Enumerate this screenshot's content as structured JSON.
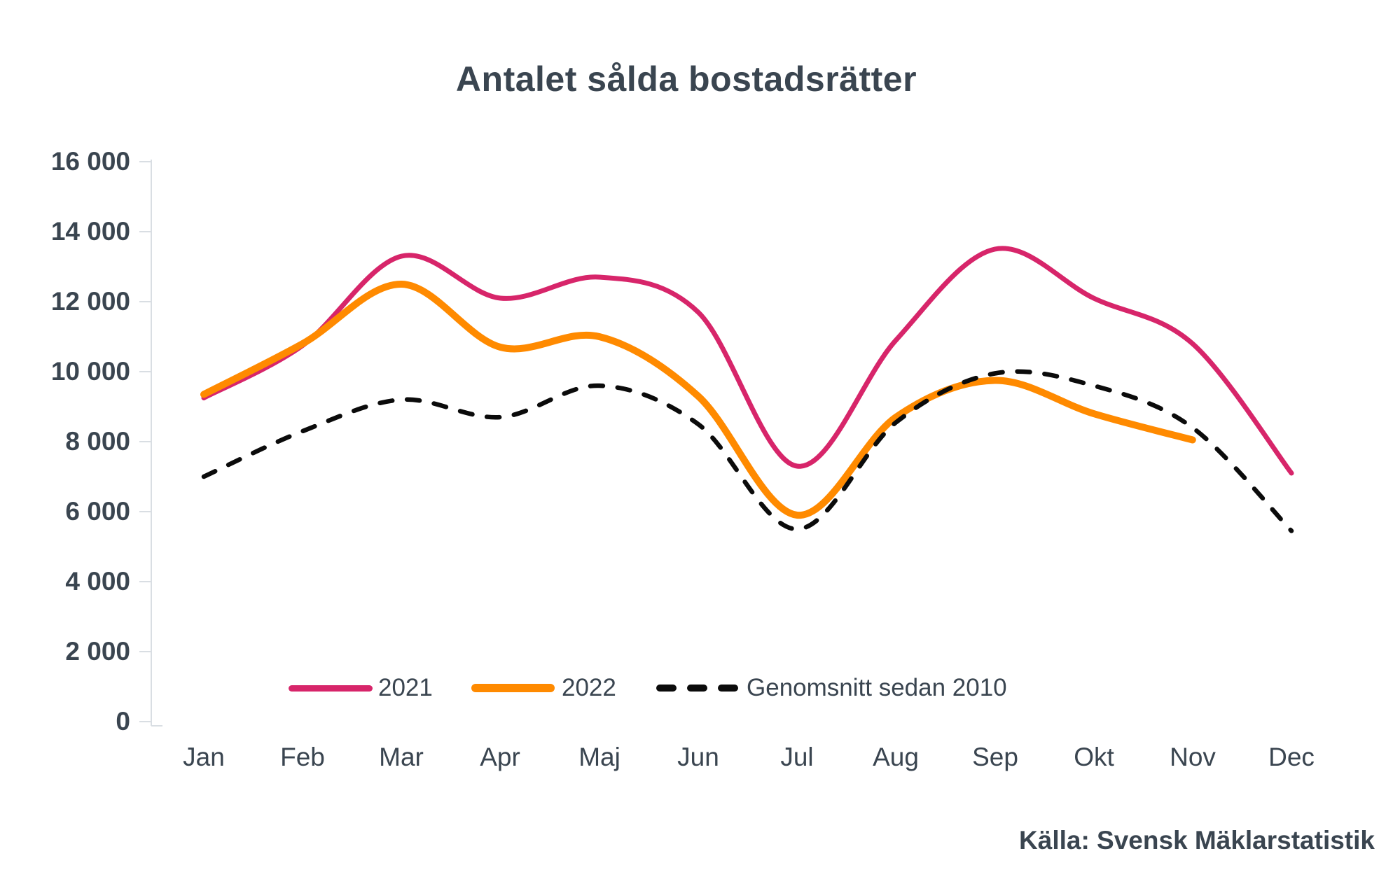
{
  "title": "Antalet sålda bostadsrätter",
  "source": "Källa: Svensk Mäklarstatistik",
  "colors": {
    "series_2021": "#D7256A",
    "series_2022": "#FF8A00",
    "average": "#0b0b0b",
    "text": "#3A4550",
    "axis": "#D9DEE3"
  },
  "yaxis": {
    "labels": [
      "16 000",
      "14 000",
      "12 000",
      "10 000",
      "8 000",
      "6 000",
      "4 000",
      "2 000",
      "0"
    ]
  },
  "xaxis": {
    "labels": [
      "Jan",
      "Feb",
      "Mar",
      "Apr",
      "Maj",
      "Jun",
      "Jul",
      "Aug",
      "Sep",
      "Okt",
      "Nov",
      "Dec"
    ]
  },
  "legend": {
    "items": [
      {
        "label": "2021"
      },
      {
        "label": "2022"
      },
      {
        "label": "Genomsnitt sedan 2010"
      }
    ]
  },
  "chart_data": {
    "type": "line",
    "title": "Antalet sålda bostadsrätter",
    "categories": [
      "Jan",
      "Feb",
      "Mar",
      "Apr",
      "Maj",
      "Jun",
      "Jul",
      "Aug",
      "Sep",
      "Okt",
      "Nov",
      "Dec"
    ],
    "series": [
      {
        "name": "2021",
        "color": "#D7256A",
        "dash": false,
        "width": 7,
        "values": [
          9250,
          10750,
          13300,
          12100,
          12700,
          11700,
          7300,
          10900,
          13500,
          12100,
          10800,
          7100
        ]
      },
      {
        "name": "2022",
        "color": "#FF8A00",
        "dash": false,
        "width": 10,
        "values": [
          9350,
          10800,
          12500,
          10700,
          11000,
          9300,
          5900,
          8700,
          9750,
          8800,
          8050
        ]
      },
      {
        "name": "Genomsnitt sedan 2010",
        "color": "#0b0b0b",
        "dash": true,
        "width": 6.5,
        "values": [
          7000,
          8300,
          9200,
          8700,
          9600,
          8500,
          5500,
          8550,
          9950,
          9600,
          8400,
          5450
        ]
      }
    ],
    "xlabel": "",
    "ylabel": "",
    "ylim": [
      0,
      16000
    ],
    "ytick_step": 2000,
    "grid": false,
    "legend_position": "bottom-inside"
  }
}
